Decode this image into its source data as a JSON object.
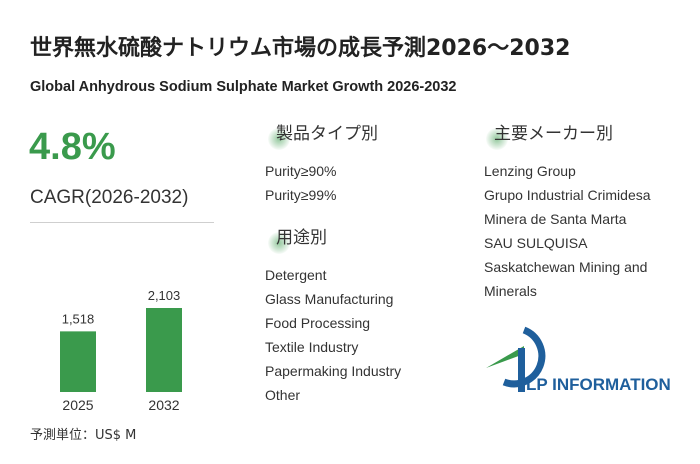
{
  "header": {
    "title": "世界無水硫酸ナトリウム市場の成長予測2026～2032",
    "subtitle": "Global Anhydrous Sodium Sulphate Market Growth 2026-2032"
  },
  "cagr": {
    "value": "4.8%",
    "label": "CAGR(2026-2032)"
  },
  "chart_data": {
    "type": "bar",
    "categories": [
      "2025",
      "2032"
    ],
    "values": [
      1518,
      2103
    ],
    "value_labels": [
      "1,518",
      "2,103"
    ],
    "unit_label": "予測単位：US$ M",
    "color": "#3a9a4c"
  },
  "segments": {
    "by_type": {
      "title": "製品タイプ別",
      "items": [
        "Purity≥90%",
        "Purity≥99%"
      ]
    },
    "by_application": {
      "title": "用途別",
      "items": [
        "Detergent",
        "Glass Manufacturing",
        "Food Processing",
        "Textile Industry",
        "Papermaking Industry",
        "Other"
      ]
    },
    "by_player": {
      "title": "主要メーカー別",
      "items": [
        "Lenzing Group",
        "Grupo Industrial Crimidesa",
        "Minera de Santa Marta",
        "SAU SULQUISA",
        "Saskatchewan Mining and Minerals"
      ]
    }
  },
  "logo": {
    "text": "LP INFORMATION",
    "colors": {
      "blue": "#1f5f9c",
      "green": "#3a9a4c"
    }
  }
}
